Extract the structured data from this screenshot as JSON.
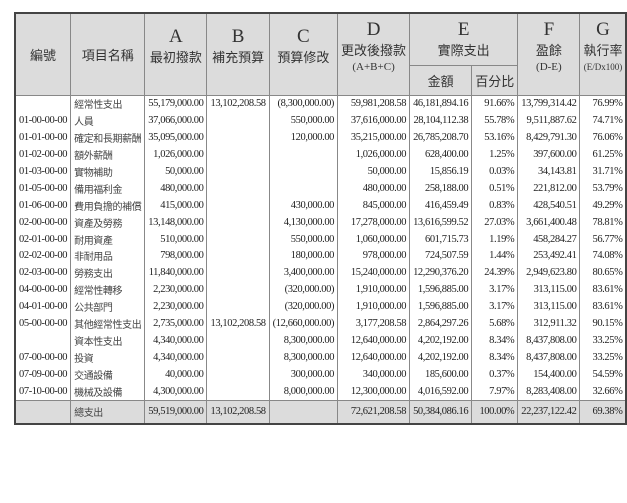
{
  "header": {
    "code": "編號",
    "name": "項目名稱",
    "a_letter": "A",
    "a_label": "最初撥款",
    "b_letter": "B",
    "b_label": "補充預算",
    "c_letter": "C",
    "c_label": "預算修改",
    "d_letter": "D",
    "d_label": "更改後撥款",
    "d_formula": "(A+B+C)",
    "e_letter": "E",
    "e_label": "實際支出",
    "e_amount": "金額",
    "e_pct": "百分比",
    "f_letter": "F",
    "f_label": "盈餘",
    "f_formula": "(D-E)",
    "g_letter": "G",
    "g_label": "執行率",
    "g_formula": "(E/Dx100)"
  },
  "rows": [
    {
      "code": "",
      "name": "經常性支出",
      "a": "55,179,000.00",
      "b": "13,102,208.58",
      "c": "(8,300,000.00)",
      "d": "59,981,208.58",
      "e": "46,181,894.16",
      "pct": "91.66%",
      "f": "13,799,314.42",
      "g": "76.99%"
    },
    {
      "code": "01-00-00-00",
      "name": "人員",
      "a": "37,066,000.00",
      "b": "",
      "c": "550,000.00",
      "d": "37,616,000.00",
      "e": "28,104,112.38",
      "pct": "55.78%",
      "f": "9,511,887.62",
      "g": "74.71%"
    },
    {
      "code": "01-01-00-00",
      "name": "確定和長期薪酬",
      "a": "35,095,000.00",
      "b": "",
      "c": "120,000.00",
      "d": "35,215,000.00",
      "e": "26,785,208.70",
      "pct": "53.16%",
      "f": "8,429,791.30",
      "g": "76.06%"
    },
    {
      "code": "01-02-00-00",
      "name": "額外薪酬",
      "a": "1,026,000.00",
      "b": "",
      "c": "",
      "d": "1,026,000.00",
      "e": "628,400.00",
      "pct": "1.25%",
      "f": "397,600.00",
      "g": "61.25%"
    },
    {
      "code": "01-03-00-00",
      "name": "實物補助",
      "a": "50,000.00",
      "b": "",
      "c": "",
      "d": "50,000.00",
      "e": "15,856.19",
      "pct": "0.03%",
      "f": "34,143.81",
      "g": "31.71%"
    },
    {
      "code": "01-05-00-00",
      "name": "備用福利金",
      "a": "480,000.00",
      "b": "",
      "c": "",
      "d": "480,000.00",
      "e": "258,188.00",
      "pct": "0.51%",
      "f": "221,812.00",
      "g": "53.79%"
    },
    {
      "code": "01-06-00-00",
      "name": "費用負擔的補償",
      "a": "415,000.00",
      "b": "",
      "c": "430,000.00",
      "d": "845,000.00",
      "e": "416,459.49",
      "pct": "0.83%",
      "f": "428,540.51",
      "g": "49.29%"
    },
    {
      "code": "02-00-00-00",
      "name": "資產及勞務",
      "a": "13,148,000.00",
      "b": "",
      "c": "4,130,000.00",
      "d": "17,278,000.00",
      "e": "13,616,599.52",
      "pct": "27.03%",
      "f": "3,661,400.48",
      "g": "78.81%"
    },
    {
      "code": "02-01-00-00",
      "name": "耐用資產",
      "a": "510,000.00",
      "b": "",
      "c": "550,000.00",
      "d": "1,060,000.00",
      "e": "601,715.73",
      "pct": "1.19%",
      "f": "458,284.27",
      "g": "56.77%"
    },
    {
      "code": "02-02-00-00",
      "name": "非耐用品",
      "a": "798,000.00",
      "b": "",
      "c": "180,000.00",
      "d": "978,000.00",
      "e": "724,507.59",
      "pct": "1.44%",
      "f": "253,492.41",
      "g": "74.08%"
    },
    {
      "code": "02-03-00-00",
      "name": "勞務支出",
      "a": "11,840,000.00",
      "b": "",
      "c": "3,400,000.00",
      "d": "15,240,000.00",
      "e": "12,290,376.20",
      "pct": "24.39%",
      "f": "2,949,623.80",
      "g": "80.65%"
    },
    {
      "code": "04-00-00-00",
      "name": "經常性轉移",
      "a": "2,230,000.00",
      "b": "",
      "c": "(320,000.00)",
      "d": "1,910,000.00",
      "e": "1,596,885.00",
      "pct": "3.17%",
      "f": "313,115.00",
      "g": "83.61%"
    },
    {
      "code": "04-01-00-00",
      "name": "公共部門",
      "a": "2,230,000.00",
      "b": "",
      "c": "(320,000.00)",
      "d": "1,910,000.00",
      "e": "1,596,885.00",
      "pct": "3.17%",
      "f": "313,115.00",
      "g": "83.61%"
    },
    {
      "code": "05-00-00-00",
      "name": "其他經常性支出",
      "a": "2,735,000.00",
      "b": "13,102,208.58",
      "c": "(12,660,000.00)",
      "d": "3,177,208.58",
      "e": "2,864,297.26",
      "pct": "5.68%",
      "f": "312,911.32",
      "g": "90.15%"
    },
    {
      "code": "",
      "name": "資本性支出",
      "a": "4,340,000.00",
      "b": "",
      "c": "8,300,000.00",
      "d": "12,640,000.00",
      "e": "4,202,192.00",
      "pct": "8.34%",
      "f": "8,437,808.00",
      "g": "33.25%"
    },
    {
      "code": "07-00-00-00",
      "name": "投資",
      "a": "4,340,000.00",
      "b": "",
      "c": "8,300,000.00",
      "d": "12,640,000.00",
      "e": "4,202,192.00",
      "pct": "8.34%",
      "f": "8,437,808.00",
      "g": "33.25%"
    },
    {
      "code": "07-09-00-00",
      "name": "交通設備",
      "a": "40,000.00",
      "b": "",
      "c": "300,000.00",
      "d": "340,000.00",
      "e": "185,600.00",
      "pct": "0.37%",
      "f": "154,400.00",
      "g": "54.59%"
    },
    {
      "code": "07-10-00-00",
      "name": "機械及設備",
      "a": "4,300,000.00",
      "b": "",
      "c": "8,000,000.00",
      "d": "12,300,000.00",
      "e": "4,016,592.00",
      "pct": "7.97%",
      "f": "8,283,408.00",
      "g": "32.66%"
    }
  ],
  "total": {
    "code": "",
    "name": "總支出",
    "a": "59,519,000.00",
    "b": "13,102,208.58",
    "c": "",
    "d": "72,621,208.58",
    "e": "50,384,086.16",
    "pct": "100.00%",
    "f": "22,237,122.42",
    "g": "69.38%"
  }
}
